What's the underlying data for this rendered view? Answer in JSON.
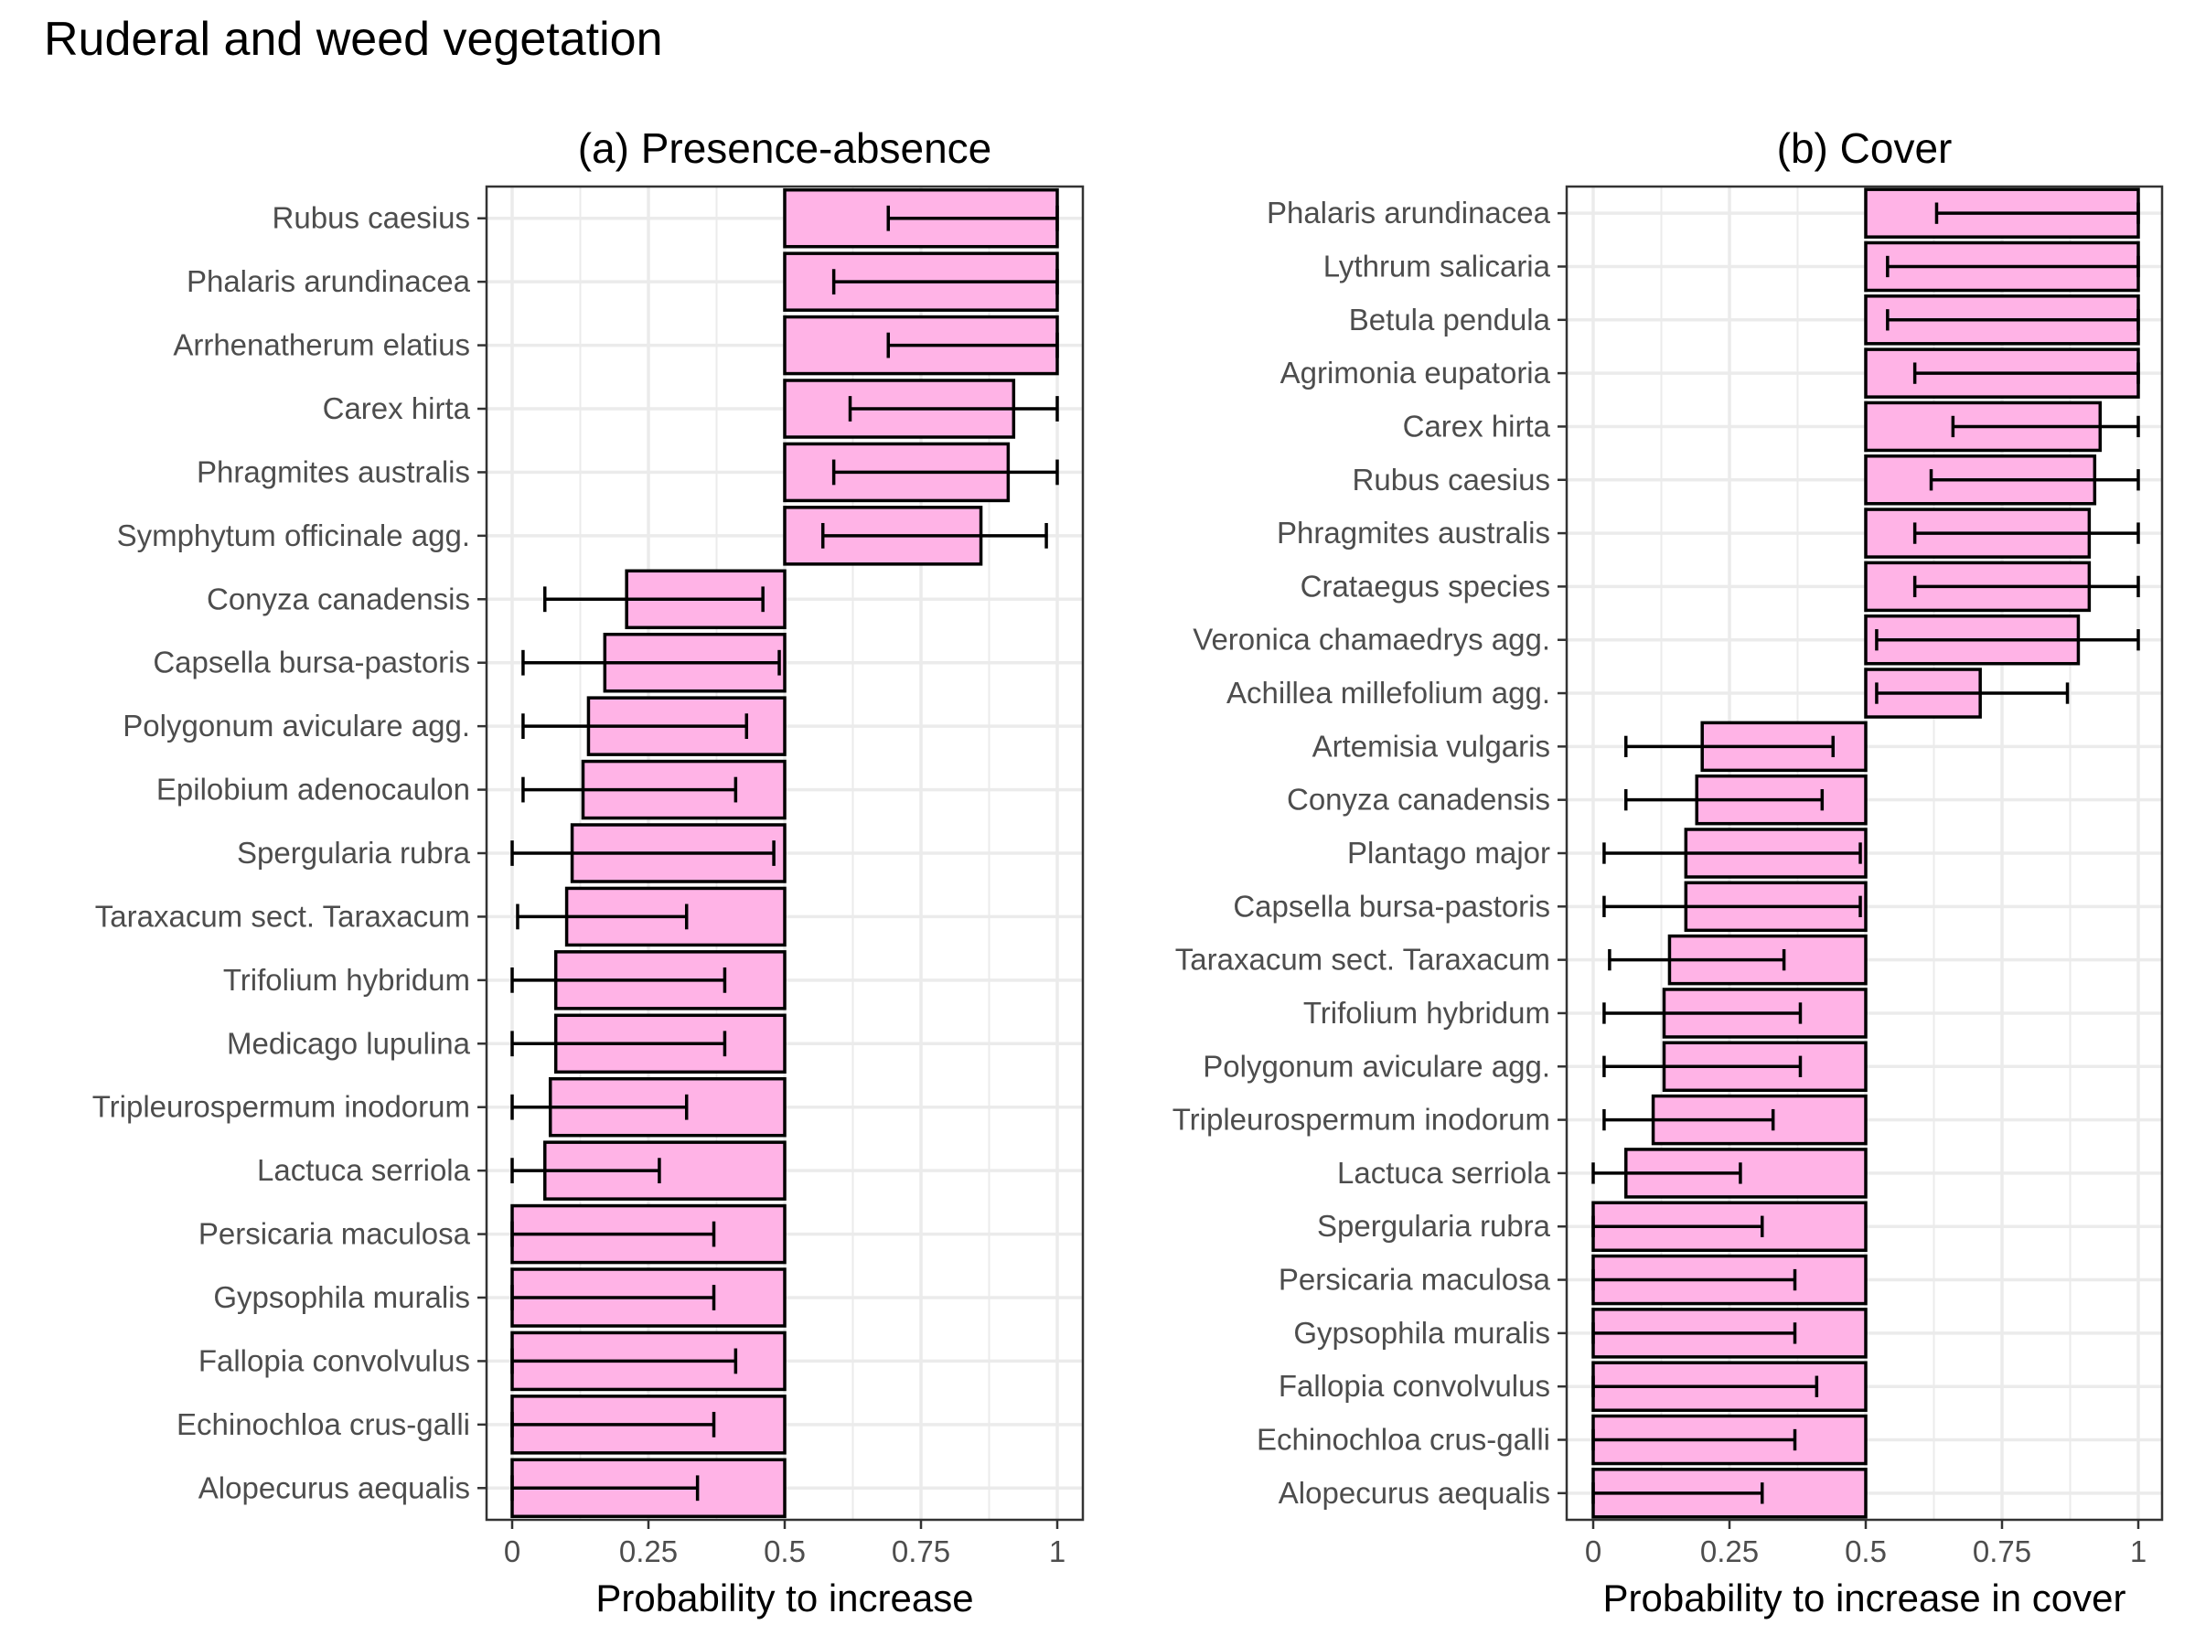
{
  "title": "Ruderal and weed vegetation",
  "colors": {
    "bar_fill": "#ffb3e6",
    "bar_stroke": "#000000",
    "grid": "#ebebeb",
    "panel_border": "#333333"
  },
  "chart_data": [
    {
      "type": "bar",
      "orientation": "horizontal",
      "title": "(a) Presence-absence",
      "xlabel": "Probability to increase",
      "ylabel": "",
      "xlim": [
        0,
        1
      ],
      "xticks": [
        "0",
        "0.25",
        "0.5",
        "0.75",
        "1"
      ],
      "baseline": 0.5,
      "grid": true,
      "categories": [
        "Rubus caesius",
        "Phalaris arundinacea",
        "Arrhenatherum elatius",
        "Carex hirta",
        "Phragmites australis",
        "Symphytum officinale agg.",
        "Conyza canadensis",
        "Capsella bursa-pastoris",
        "Polygonum aviculare agg.",
        "Epilobium adenocaulon",
        "Spergularia rubra",
        "Taraxacum sect. Taraxacum",
        "Trifolium hybridum",
        "Medicago lupulina",
        "Tripleurospermum inodorum",
        "Lactuca serriola",
        "Persicaria maculosa",
        "Gypsophila muralis",
        "Fallopia convolvulus",
        "Echinochloa crus-galli",
        "Alopecurus aequalis"
      ],
      "values": [
        1.0,
        1.0,
        1.0,
        0.92,
        0.91,
        0.86,
        0.21,
        0.17,
        0.14,
        0.13,
        0.11,
        0.1,
        0.08,
        0.08,
        0.07,
        0.06,
        0.0,
        0.0,
        0.0,
        0.0,
        0.0
      ],
      "lower": [
        0.69,
        0.59,
        0.69,
        0.62,
        0.59,
        0.57,
        0.06,
        0.02,
        0.02,
        0.02,
        0.0,
        0.01,
        0.0,
        0.0,
        0.0,
        0.0,
        0.0,
        0.0,
        0.0,
        0.0,
        0.0
      ],
      "upper": [
        1.0,
        1.0,
        1.0,
        1.0,
        1.0,
        0.98,
        0.46,
        0.49,
        0.43,
        0.41,
        0.48,
        0.32,
        0.39,
        0.39,
        0.32,
        0.27,
        0.37,
        0.37,
        0.41,
        0.37,
        0.34
      ]
    },
    {
      "type": "bar",
      "orientation": "horizontal",
      "title": "(b) Cover",
      "xlabel": "Probability to increase in cover",
      "ylabel": "",
      "xlim": [
        0,
        1
      ],
      "xticks": [
        "0",
        "0.25",
        "0.5",
        "0.75",
        "1"
      ],
      "baseline": 0.5,
      "grid": true,
      "categories": [
        "Phalaris arundinacea",
        "Lythrum salicaria",
        "Betula pendula",
        "Agrimonia eupatoria",
        "Carex hirta",
        "Rubus caesius",
        "Phragmites australis",
        "Crataegus species",
        "Veronica chamaedrys agg.",
        "Achillea millefolium agg.",
        "Artemisia vulgaris",
        "Conyza canadensis",
        "Plantago major",
        "Capsella bursa-pastoris",
        "Taraxacum sect. Taraxacum",
        "Trifolium hybridum",
        "Polygonum aviculare agg.",
        "Tripleurospermum inodorum",
        "Lactuca serriola",
        "Spergularia rubra",
        "Persicaria maculosa",
        "Gypsophila muralis",
        "Fallopia convolvulus",
        "Echinochloa crus-galli",
        "Alopecurus aequalis"
      ],
      "values": [
        1.0,
        1.0,
        1.0,
        1.0,
        0.93,
        0.92,
        0.91,
        0.91,
        0.89,
        0.71,
        0.2,
        0.19,
        0.17,
        0.17,
        0.14,
        0.13,
        0.13,
        0.11,
        0.06,
        0.0,
        0.0,
        0.0,
        0.0,
        0.0,
        0.0
      ],
      "lower": [
        0.63,
        0.54,
        0.54,
        0.59,
        0.66,
        0.62,
        0.59,
        0.59,
        0.52,
        0.52,
        0.06,
        0.06,
        0.02,
        0.02,
        0.03,
        0.02,
        0.02,
        0.02,
        0.0,
        0.0,
        0.0,
        0.0,
        0.0,
        0.0,
        0.0
      ],
      "upper": [
        1.0,
        1.0,
        1.0,
        1.0,
        1.0,
        1.0,
        1.0,
        1.0,
        1.0,
        0.87,
        0.44,
        0.42,
        0.49,
        0.49,
        0.35,
        0.38,
        0.38,
        0.33,
        0.27,
        0.31,
        0.37,
        0.37,
        0.41,
        0.37,
        0.31
      ]
    }
  ]
}
